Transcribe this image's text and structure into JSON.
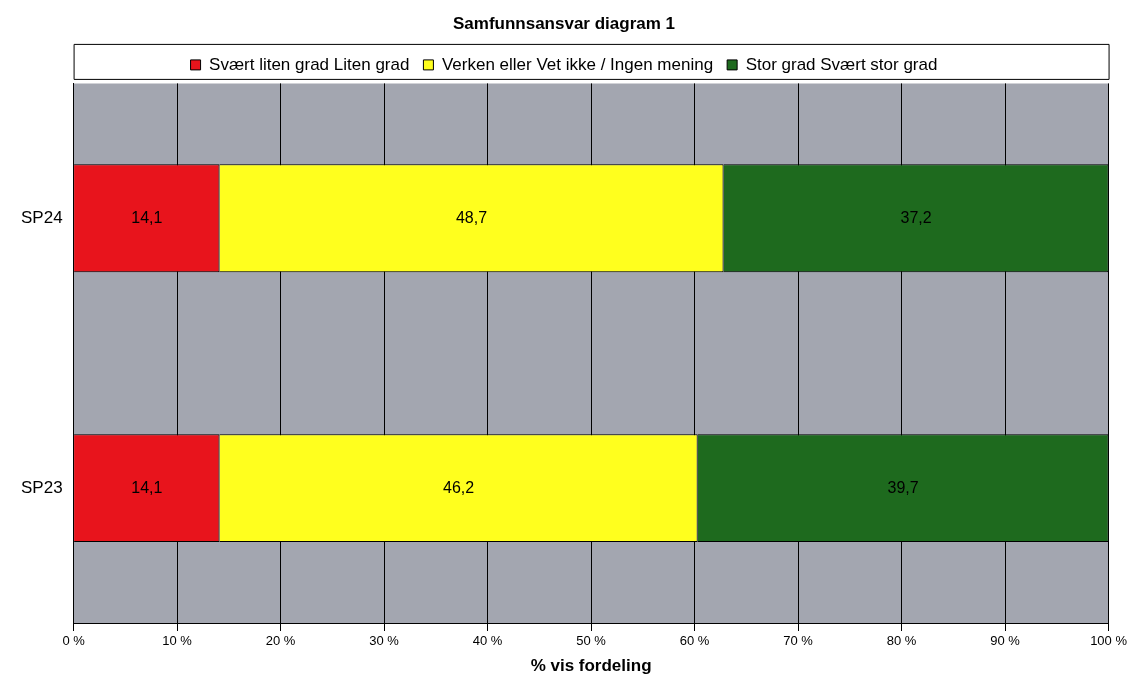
{
  "chart_data": {
    "type": "bar",
    "orientation": "horizontal",
    "stacked": true,
    "title": "Samfunnsansvar diagram 1",
    "xlabel": "% vis fordeling",
    "categories": [
      "SP24",
      "SP23"
    ],
    "series": [
      {
        "name": "Svært liten grad Liten grad",
        "color": "#e8141c",
        "values": [
          14.1,
          14.1
        ],
        "value_labels": [
          "14,1",
          "14,1"
        ]
      },
      {
        "name": "Verken eller Vet ikke / Ingen mening",
        "color": "#ffff1e",
        "values": [
          48.7,
          46.2
        ],
        "value_labels": [
          "48,7",
          "46,2"
        ]
      },
      {
        "name": "Stor grad Svært stor grad",
        "color": "#1e6a1e",
        "values": [
          37.2,
          39.7
        ],
        "value_labels": [
          "37,2",
          "39,7"
        ]
      }
    ],
    "xlim": [
      0,
      100
    ],
    "xticks": [
      {
        "value": 0,
        "label": "0 %"
      },
      {
        "value": 10,
        "label": "10 %"
      },
      {
        "value": 20,
        "label": "20 %"
      },
      {
        "value": 30,
        "label": "30 %"
      },
      {
        "value": 40,
        "label": "40 %"
      },
      {
        "value": 50,
        "label": "50 %"
      },
      {
        "value": 60,
        "label": "60 %"
      },
      {
        "value": 70,
        "label": "70 %"
      },
      {
        "value": 80,
        "label": "80 %"
      },
      {
        "value": 90,
        "label": "90 %"
      },
      {
        "value": 100,
        "label": "100 %"
      }
    ],
    "grid": "x",
    "legend": "top"
  }
}
